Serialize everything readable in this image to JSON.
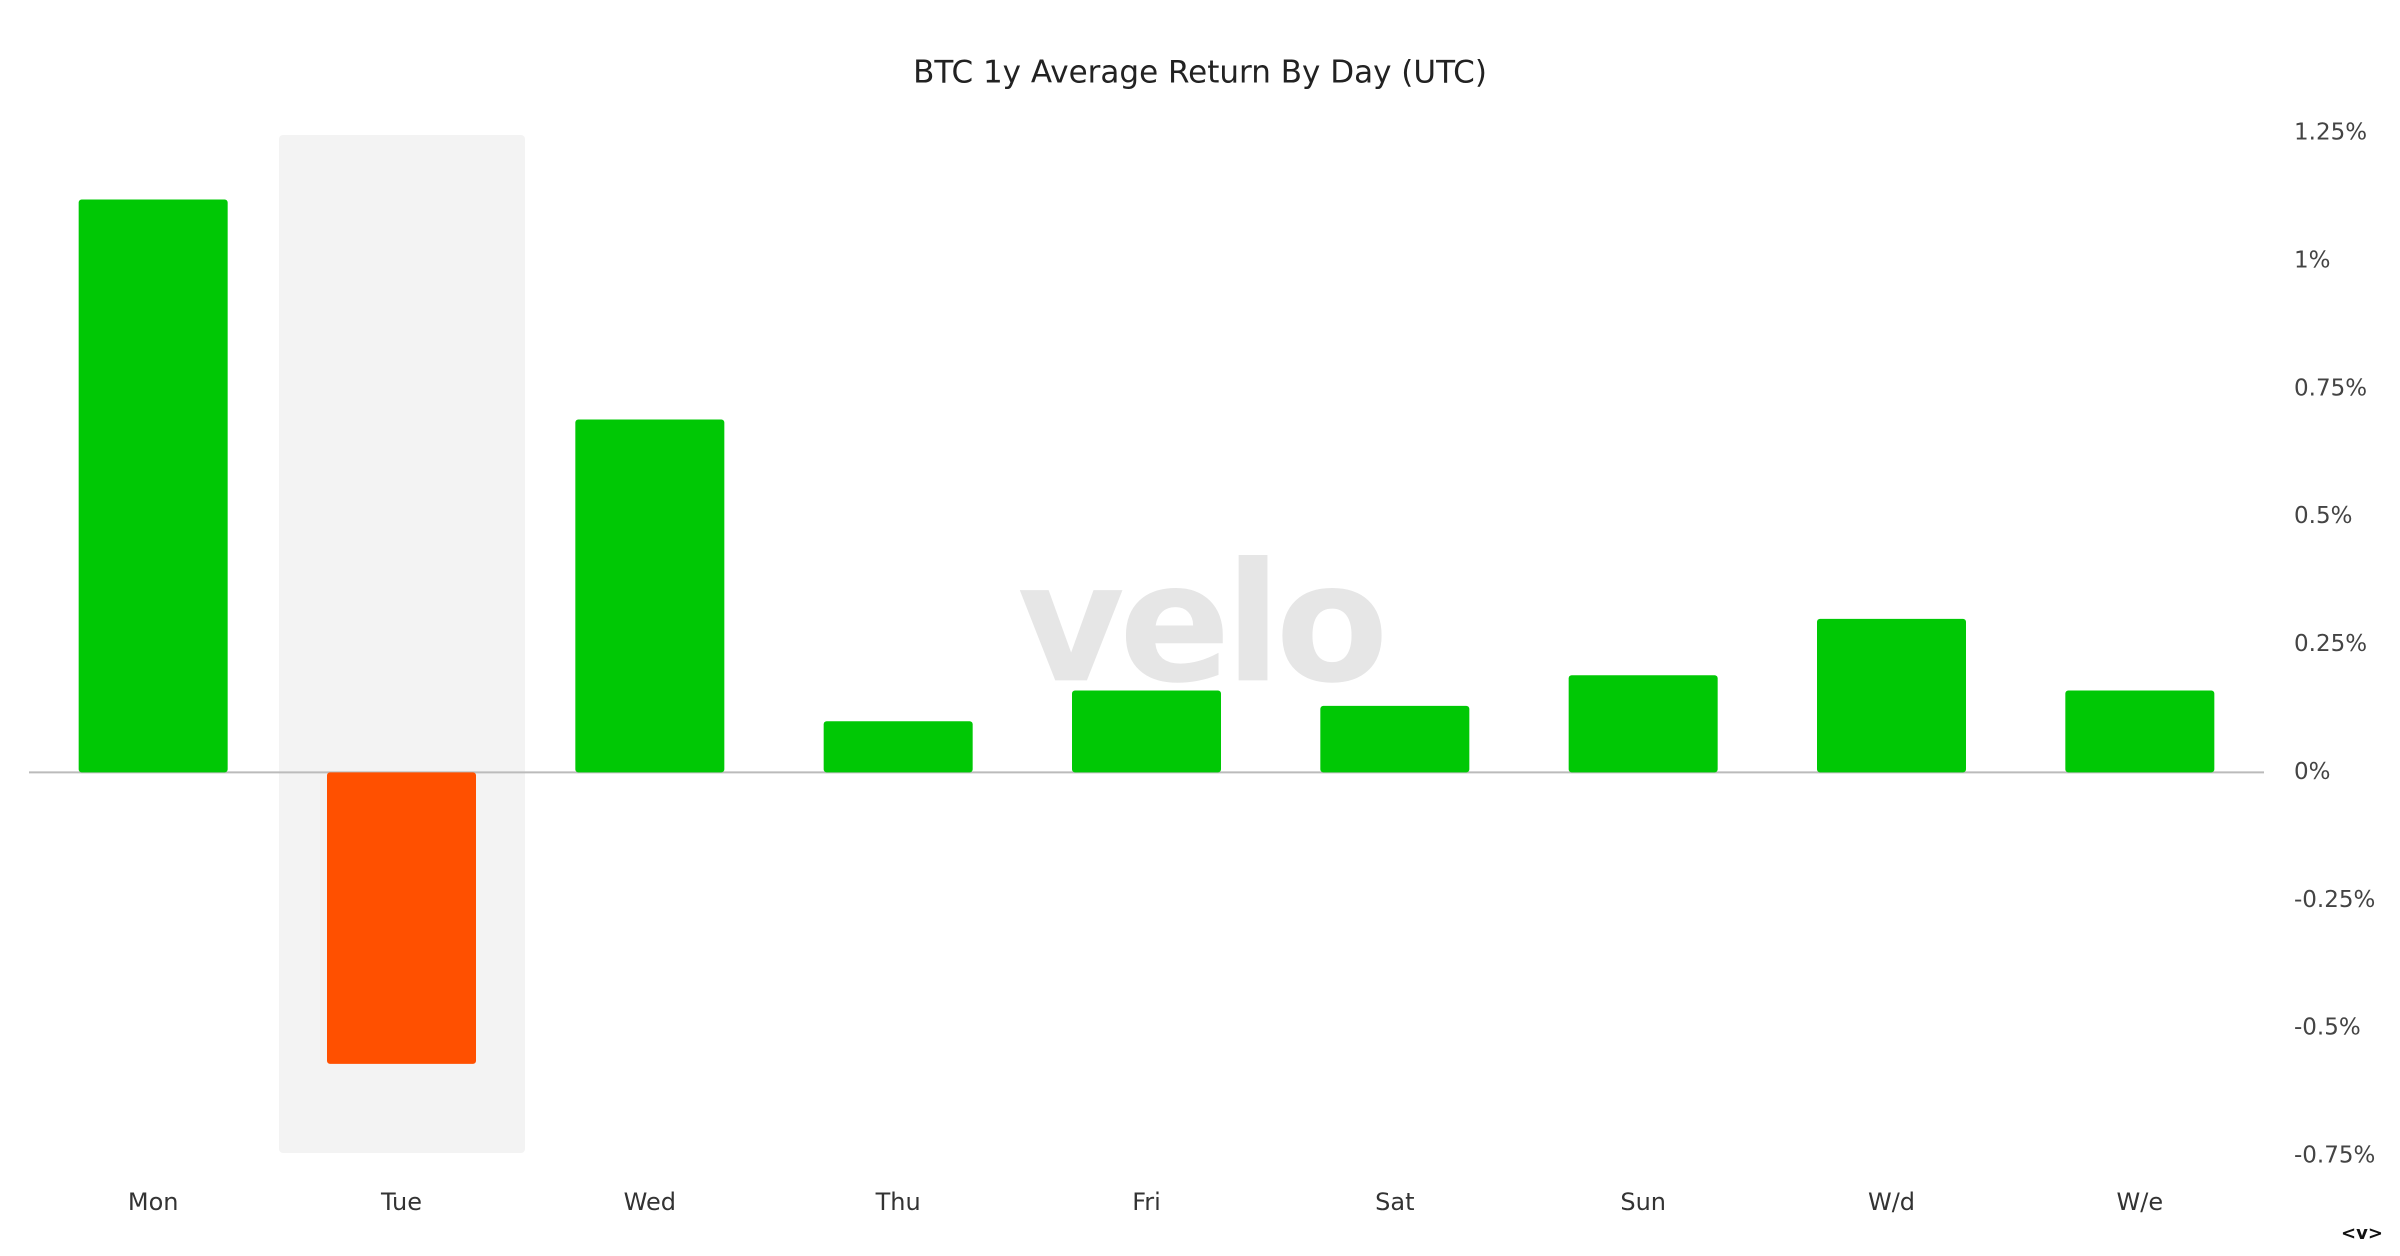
{
  "chart_data": {
    "type": "bar",
    "title": "BTC 1y Average Return By Day (UTC)",
    "categories": [
      "Mon",
      "Tue",
      "Wed",
      "Thu",
      "Fri",
      "Sat",
      "Sun",
      "W/d",
      "W/e"
    ],
    "values": [
      1.12,
      -0.57,
      0.69,
      0.1,
      0.16,
      0.13,
      0.19,
      0.3,
      0.16
    ],
    "positive_color": "#00c805",
    "negative_color": "#ff5000",
    "ylim": [
      -0.75,
      1.25
    ],
    "yticks": [
      {
        "value": 1.25,
        "label": "1.25%"
      },
      {
        "value": 1,
        "label": "1%"
      },
      {
        "value": 0.75,
        "label": "0.75%"
      },
      {
        "value": 0.5,
        "label": "0.5%"
      },
      {
        "value": 0.25,
        "label": "0.25%"
      },
      {
        "value": 0,
        "label": "0%"
      },
      {
        "value": -0.25,
        "label": "-0.25%"
      },
      {
        "value": -0.5,
        "label": "-0.5%"
      },
      {
        "value": -0.75,
        "label": "-0.75%"
      }
    ],
    "y_axis_side": "right",
    "grid": false,
    "watermark": "velo",
    "corner_mark": "<v>"
  }
}
